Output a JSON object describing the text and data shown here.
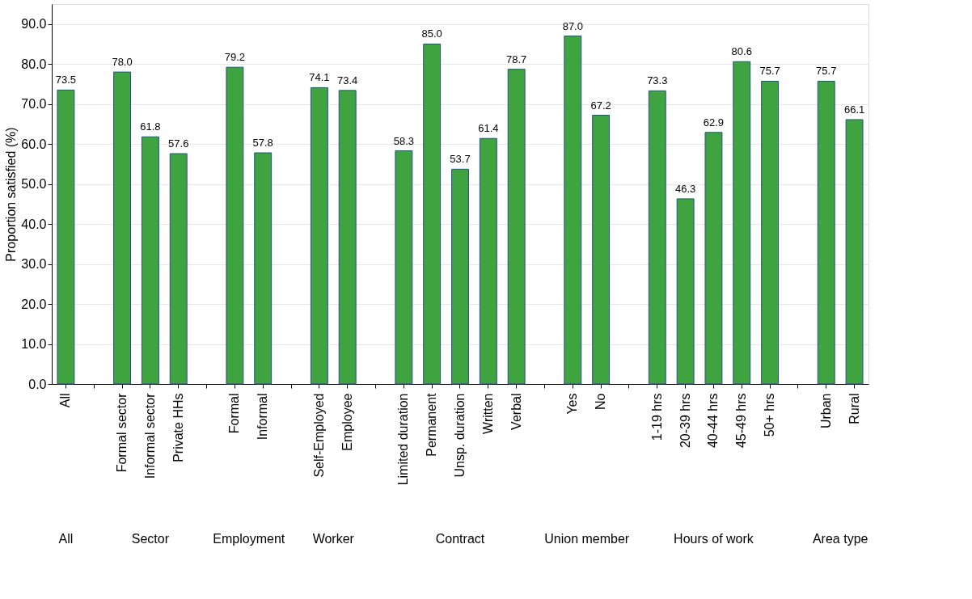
{
  "chart_data": {
    "type": "bar",
    "ylabel": "Proportion satisfied (%)",
    "categories": [
      "All",
      null,
      "Formal sector",
      "Informal sector",
      "Private HHs",
      null,
      "Formal",
      "Informal",
      null,
      "Self-Employed",
      "Employee",
      null,
      "Limited duration",
      "Permanent",
      "Unsp. duration",
      "Written",
      "Verbal",
      null,
      "Yes",
      "No",
      null,
      "1-19 hrs",
      "20-39 hrs",
      "40-44 hrs",
      "45-49 hrs",
      "50+ hrs",
      null,
      "Urban",
      "Rural"
    ],
    "values": [
      73.5,
      null,
      78.0,
      61.8,
      57.6,
      null,
      79.2,
      57.8,
      null,
      74.1,
      73.4,
      null,
      58.3,
      85.0,
      53.7,
      61.4,
      78.7,
      null,
      87.0,
      67.2,
      null,
      73.3,
      46.3,
      62.9,
      80.6,
      75.7,
      null,
      75.7,
      66.1
    ],
    "color": "#3fa33f",
    "ylim": [
      0,
      95
    ],
    "yticks": [
      {
        "value": 0,
        "label": "0.0"
      },
      {
        "value": 10,
        "label": "10.0"
      },
      {
        "value": 20,
        "label": "20.0"
      },
      {
        "value": 30,
        "label": "30.0"
      },
      {
        "value": 40,
        "label": "40.0"
      },
      {
        "value": 50,
        "label": "50.0"
      },
      {
        "value": 60,
        "label": "60.0"
      },
      {
        "value": 70,
        "label": "70.0"
      },
      {
        "value": 80,
        "label": "80.0"
      },
      {
        "value": 90,
        "label": "90.0"
      }
    ],
    "value_labels": [
      "73.5",
      null,
      "78.0",
      "61.8",
      "57.6",
      null,
      "79.2",
      "57.8",
      null,
      "74.1",
      "73.4",
      null,
      "58.3",
      "85.0",
      "53.7",
      "61.4",
      "78.7",
      null,
      "87.0",
      "67.2",
      null,
      "73.3",
      "46.3",
      "62.9",
      "80.6",
      "75.7",
      null,
      "75.7",
      "66.1"
    ],
    "grid": "y",
    "annotations": [
      "All",
      "Sector",
      "Employment",
      "Worker",
      "Contract",
      "Union member",
      "Hours of work",
      "Area type"
    ]
  }
}
